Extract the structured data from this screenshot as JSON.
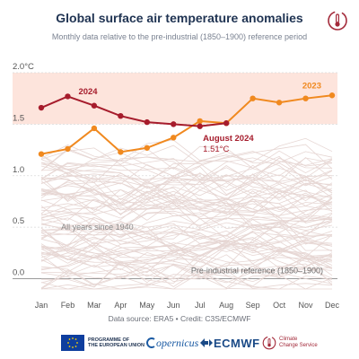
{
  "header": {
    "title": "Global surface air temperature anomalies",
    "subtitle": "Monthly data relative to the pre-industrial (1850–1900) reference period"
  },
  "footer": {
    "source": "Data source: ERA5 • Credit: C3S/ECMWF",
    "logos": {
      "eu_line1": "PROGRAMME OF",
      "eu_line2": "THE EUROPEAN UNION",
      "copernicus": "opernicus",
      "ecmwf": "ECMWF",
      "c3s_line1": "Climate",
      "c3s_line2": "Change Service"
    }
  },
  "colors": {
    "series_2024": "#a61c2c",
    "series_2023": "#f0891f",
    "background_years": "#e6d6d3",
    "band_fill": "#fde4dc",
    "axis_text": "#555555",
    "gridline": "#d9d9d9",
    "title": "#1f3352"
  },
  "chart_data": {
    "type": "line",
    "categories": [
      "Jan",
      "Feb",
      "Mar",
      "Apr",
      "May",
      "Jun",
      "Jul",
      "Aug",
      "Sep",
      "Oct",
      "Nov",
      "Dec"
    ],
    "ylim": [
      -0.1,
      2.0
    ],
    "yticks": [
      "0.0",
      "0.5",
      "1.0",
      "1.5",
      "2.0°C"
    ],
    "ytick_values": [
      0.0,
      0.5,
      1.0,
      1.5,
      2.0
    ],
    "band": [
      1.5,
      2.0
    ],
    "series": [
      {
        "name": "2024",
        "color": "#a61c2c",
        "values": [
          1.66,
          1.77,
          1.68,
          1.58,
          1.52,
          1.5,
          1.48,
          1.51,
          null,
          null,
          null,
          null
        ]
      },
      {
        "name": "2023",
        "color": "#f0891f",
        "values": [
          1.21,
          1.26,
          1.46,
          1.23,
          1.27,
          1.37,
          1.53,
          1.51,
          1.75,
          1.71,
          1.75,
          1.78
        ]
      }
    ],
    "background_series_count": 84,
    "annotations": {
      "label_2024": "2024",
      "label_2023": "2023",
      "highlight_title": "August 2024",
      "highlight_value": "1.51°C",
      "background_label": "All years since 1940",
      "baseline_label": "Pre-industrial reference (1850–1900)"
    }
  }
}
